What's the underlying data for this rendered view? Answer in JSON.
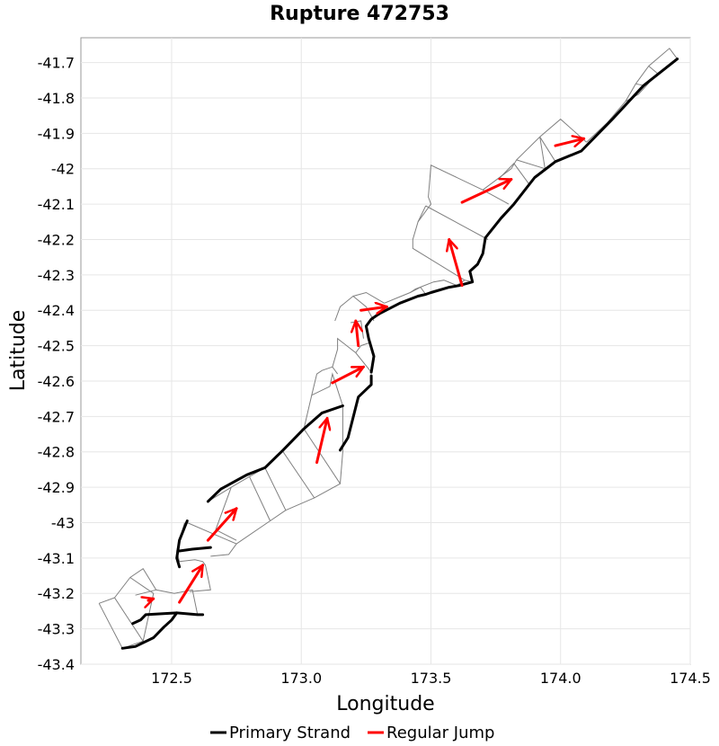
{
  "chart_data": {
    "type": "line",
    "title": "Rupture 472753",
    "xlabel": "Longitude",
    "ylabel": "Latitude",
    "xlim": [
      172.15,
      174.5
    ],
    "ylim": [
      -43.4,
      -41.63
    ],
    "x_ticks": [
      172.5,
      173.0,
      173.5,
      174.0,
      174.5
    ],
    "x_tick_labels": [
      "172.5",
      "173.0",
      "173.5",
      "174.0",
      "174.5"
    ],
    "y_ticks": [
      -41.7,
      -41.8,
      -41.9,
      -42.0,
      -42.1,
      -42.2,
      -42.3,
      -42.4,
      -42.5,
      -42.6,
      -42.7,
      -42.8,
      -42.9,
      -43.0,
      -43.1,
      -43.2,
      -43.3,
      -43.4
    ],
    "y_tick_labels": [
      "-41.7",
      "-41.8",
      "-41.9",
      "-42",
      "-42.1",
      "-42.2",
      "-42.3",
      "-42.4",
      "-42.5",
      "-42.6",
      "-42.7",
      "-42.8",
      "-42.9",
      "-43",
      "-43.1",
      "-43.2",
      "-43.3",
      "-43.4"
    ],
    "grid": true,
    "legend_position": "bottom-center",
    "colors": {
      "primary_strand": "#000000",
      "regular_jump": "#ff0000",
      "section_outline": "#808080"
    },
    "series": [
      {
        "name": "Primary Strand",
        "color": "#000000",
        "segments": [
          [
            [
              172.31,
              -43.355
            ],
            [
              172.36,
              -43.35
            ],
            [
              172.43,
              -43.325
            ],
            [
              172.47,
              -43.295
            ],
            [
              172.5,
              -43.275
            ],
            [
              172.52,
              -43.255
            ]
          ],
          [
            [
              172.35,
              -43.285
            ],
            [
              172.38,
              -43.275
            ],
            [
              172.4,
              -43.26
            ],
            [
              172.52,
              -43.255
            ],
            [
              172.6,
              -43.26
            ],
            [
              172.62,
              -43.26
            ]
          ],
          [
            [
              172.53,
              -43.125
            ],
            [
              172.52,
              -43.1
            ],
            [
              172.53,
              -43.05
            ],
            [
              172.56,
              -42.995
            ]
          ],
          [
            [
              172.53,
              -43.08
            ],
            [
              172.58,
              -43.075
            ],
            [
              172.65,
              -43.07
            ]
          ],
          [
            [
              172.64,
              -42.94
            ],
            [
              172.69,
              -42.905
            ],
            [
              172.79,
              -42.865
            ],
            [
              172.86,
              -42.845
            ],
            [
              172.93,
              -42.795
            ],
            [
              173.01,
              -42.735
            ],
            [
              173.08,
              -42.69
            ],
            [
              173.16,
              -42.67
            ]
          ],
          [
            [
              173.15,
              -42.795
            ],
            [
              173.18,
              -42.76
            ],
            [
              173.22,
              -42.645
            ],
            [
              173.27,
              -42.61
            ],
            [
              173.27,
              -42.585
            ]
          ],
          [
            [
              173.27,
              -42.575
            ],
            [
              173.28,
              -42.53
            ],
            [
              173.26,
              -42.48
            ],
            [
              173.25,
              -42.445
            ],
            [
              173.27,
              -42.425
            ],
            [
              173.29,
              -42.415
            ],
            [
              173.3,
              -42.41
            ]
          ],
          [
            [
              173.3,
              -42.41
            ],
            [
              173.38,
              -42.38
            ],
            [
              173.45,
              -42.36
            ],
            [
              173.48,
              -42.355
            ],
            [
              173.5,
              -42.35
            ],
            [
              173.57,
              -42.335
            ],
            [
              173.61,
              -42.33
            ],
            [
              173.66,
              -42.32
            ],
            [
              173.65,
              -42.29
            ],
            [
              173.68,
              -42.27
            ],
            [
              173.7,
              -42.24
            ],
            [
              173.71,
              -42.195
            ],
            [
              173.77,
              -42.14
            ],
            [
              173.82,
              -42.1
            ],
            [
              173.9,
              -42.025
            ],
            [
              173.98,
              -41.98
            ],
            [
              174.08,
              -41.95
            ],
            [
              174.2,
              -41.86
            ],
            [
              174.32,
              -41.765
            ],
            [
              174.45,
              -41.69
            ]
          ]
        ]
      },
      {
        "name": "Regular Jump",
        "color": "#ff0000",
        "arrows": [
          [
            [
              172.41,
              -43.22
            ],
            [
              172.43,
              -43.215
            ]
          ],
          [
            [
              172.53,
              -43.225
            ],
            [
              172.62,
              -43.12
            ]
          ],
          [
            [
              172.64,
              -43.05
            ],
            [
              172.75,
              -42.96
            ]
          ],
          [
            [
              173.06,
              -42.83
            ],
            [
              173.1,
              -42.705
            ]
          ],
          [
            [
              173.12,
              -42.605
            ],
            [
              173.24,
              -42.56
            ]
          ],
          [
            [
              173.22,
              -42.5
            ],
            [
              173.21,
              -42.43
            ]
          ],
          [
            [
              173.23,
              -42.4
            ],
            [
              173.33,
              -42.39
            ]
          ],
          [
            [
              173.62,
              -42.33
            ],
            [
              173.57,
              -42.2
            ]
          ],
          [
            [
              173.62,
              -42.095
            ],
            [
              173.81,
              -42.03
            ]
          ],
          [
            [
              173.98,
              -41.935
            ],
            [
              174.09,
              -41.915
            ]
          ]
        ]
      }
    ],
    "section_outlines": [
      [
        [
          172.22,
          -43.228
        ],
        [
          172.28,
          -43.212
        ],
        [
          172.39,
          -43.335
        ],
        [
          172.31,
          -43.355
        ],
        [
          172.22,
          -43.228
        ]
      ],
      [
        [
          172.28,
          -43.212
        ],
        [
          172.34,
          -43.155
        ],
        [
          172.41,
          -43.19
        ],
        [
          172.43,
          -43.2
        ],
        [
          172.39,
          -43.335
        ]
      ],
      [
        [
          172.34,
          -43.155
        ],
        [
          172.39,
          -43.13
        ],
        [
          172.44,
          -43.19
        ],
        [
          172.51,
          -43.2
        ],
        [
          172.58,
          -43.19
        ],
        [
          172.6,
          -43.26
        ],
        [
          172.62,
          -43.26
        ]
      ],
      [
        [
          172.36,
          -43.205
        ],
        [
          172.44,
          -43.19
        ]
      ],
      [
        [
          172.53,
          -43.11
        ],
        [
          172.59,
          -43.105
        ],
        [
          172.62,
          -43.11
        ],
        [
          172.63,
          -43.12
        ],
        [
          172.65,
          -43.19
        ],
        [
          172.57,
          -43.195
        ]
      ],
      [
        [
          172.53,
          -43.11
        ],
        [
          172.52,
          -43.08
        ],
        [
          172.53,
          -43.05
        ],
        [
          172.55,
          -43.0
        ]
      ],
      [
        [
          172.56,
          -43.0
        ],
        [
          172.75,
          -43.06
        ],
        [
          172.72,
          -43.09
        ],
        [
          172.65,
          -43.095
        ]
      ],
      [
        [
          172.64,
          -42.94
        ],
        [
          172.73,
          -42.9
        ],
        [
          172.8,
          -42.87
        ],
        [
          172.86,
          -42.845
        ]
      ],
      [
        [
          172.73,
          -42.9
        ],
        [
          172.67,
          -43.02
        ],
        [
          172.75,
          -43.05
        ]
      ],
      [
        [
          172.8,
          -42.87
        ],
        [
          172.88,
          -42.995
        ],
        [
          172.75,
          -43.06
        ]
      ],
      [
        [
          172.86,
          -42.845
        ],
        [
          172.94,
          -42.965
        ],
        [
          172.88,
          -42.995
        ]
      ],
      [
        [
          172.93,
          -42.8
        ],
        [
          173.05,
          -42.93
        ],
        [
          172.94,
          -42.965
        ]
      ],
      [
        [
          173.01,
          -42.735
        ],
        [
          173.15,
          -42.89
        ],
        [
          173.05,
          -42.93
        ]
      ],
      [
        [
          173.01,
          -42.735
        ],
        [
          173.04,
          -42.64
        ],
        [
          173.11,
          -42.615
        ],
        [
          173.12,
          -42.58
        ],
        [
          173.16,
          -42.67
        ],
        [
          173.16,
          -42.8
        ],
        [
          173.15,
          -42.89
        ]
      ],
      [
        [
          173.04,
          -42.64
        ],
        [
          173.06,
          -42.58
        ],
        [
          173.08,
          -42.57
        ],
        [
          173.12,
          -42.56
        ],
        [
          173.14,
          -42.58
        ]
      ],
      [
        [
          173.12,
          -42.56
        ],
        [
          173.14,
          -42.51
        ],
        [
          173.14,
          -42.48
        ],
        [
          173.21,
          -42.52
        ],
        [
          173.27,
          -42.575
        ]
      ],
      [
        [
          173.21,
          -42.52
        ],
        [
          173.23,
          -42.5
        ],
        [
          173.27,
          -42.49
        ]
      ],
      [
        [
          173.19,
          -42.435
        ],
        [
          173.23,
          -42.43
        ],
        [
          173.24,
          -42.48
        ]
      ],
      [
        [
          173.13,
          -42.43
        ],
        [
          173.15,
          -42.39
        ],
        [
          173.2,
          -42.36
        ],
        [
          173.25,
          -42.39
        ],
        [
          173.28,
          -42.43
        ]
      ],
      [
        [
          173.2,
          -42.36
        ],
        [
          173.25,
          -42.35
        ],
        [
          173.32,
          -42.38
        ]
      ],
      [
        [
          173.32,
          -42.38
        ],
        [
          173.37,
          -42.365
        ],
        [
          173.42,
          -42.35
        ],
        [
          173.46,
          -42.335
        ],
        [
          173.48,
          -42.355
        ]
      ],
      [
        [
          173.42,
          -42.35
        ],
        [
          173.44,
          -42.34
        ],
        [
          173.51,
          -42.32
        ],
        [
          173.55,
          -42.315
        ],
        [
          173.6,
          -42.33
        ]
      ],
      [
        [
          173.5,
          -42.35
        ],
        [
          173.52,
          -42.345
        ]
      ],
      [
        [
          173.6,
          -42.33
        ],
        [
          173.63,
          -42.315
        ],
        [
          173.66,
          -42.32
        ]
      ],
      [
        [
          173.63,
          -42.315
        ],
        [
          173.43,
          -42.225
        ],
        [
          173.43,
          -42.2
        ],
        [
          173.45,
          -42.15
        ],
        [
          173.48,
          -42.105
        ]
      ],
      [
        [
          173.45,
          -42.15
        ],
        [
          173.5,
          -42.1
        ],
        [
          173.49,
          -42.08
        ],
        [
          173.5,
          -41.99
        ],
        [
          173.7,
          -42.06
        ],
        [
          173.8,
          -42.1
        ]
      ],
      [
        [
          173.48,
          -42.105
        ],
        [
          173.72,
          -42.2
        ]
      ],
      [
        [
          173.7,
          -42.06
        ],
        [
          173.81,
          -42.0
        ],
        [
          173.83,
          -41.975
        ],
        [
          173.92,
          -41.91
        ],
        [
          174.0,
          -41.86
        ],
        [
          174.1,
          -41.925
        ]
      ],
      [
        [
          173.76,
          -42.03
        ],
        [
          173.82,
          -41.985
        ],
        [
          173.88,
          -42.045
        ]
      ],
      [
        [
          173.83,
          -41.975
        ],
        [
          173.94,
          -42.0
        ],
        [
          173.92,
          -41.91
        ]
      ],
      [
        [
          173.92,
          -41.91
        ],
        [
          173.98,
          -41.98
        ]
      ],
      [
        [
          174.1,
          -41.925
        ],
        [
          174.18,
          -41.87
        ],
        [
          174.25,
          -41.81
        ],
        [
          174.3,
          -41.79
        ],
        [
          174.35,
          -41.75
        ],
        [
          174.45,
          -41.69
        ],
        [
          174.42,
          -41.66
        ],
        [
          174.34,
          -41.71
        ],
        [
          174.29,
          -41.76
        ],
        [
          174.25,
          -41.81
        ]
      ],
      [
        [
          174.18,
          -41.87
        ],
        [
          174.2,
          -41.86
        ]
      ],
      [
        [
          174.29,
          -41.76
        ],
        [
          174.32,
          -41.765
        ]
      ],
      [
        [
          174.34,
          -41.71
        ],
        [
          174.38,
          -41.735
        ]
      ]
    ]
  },
  "legend": {
    "primary_label": "Primary Strand",
    "jump_label": "Regular Jump"
  }
}
